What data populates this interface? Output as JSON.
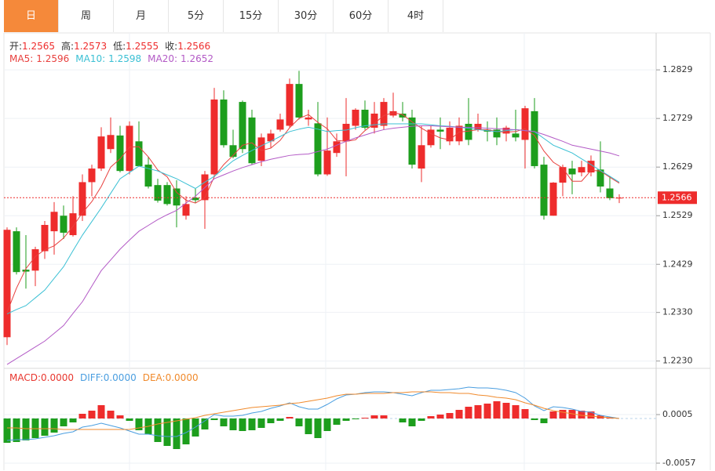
{
  "tabs": [
    {
      "label": "日",
      "active": true
    },
    {
      "label": "周",
      "active": false
    },
    {
      "label": "月",
      "active": false
    },
    {
      "label": "5分",
      "active": false
    },
    {
      "label": "15分",
      "active": false
    },
    {
      "label": "30分",
      "active": false
    },
    {
      "label": "60分",
      "active": false
    },
    {
      "label": "4时",
      "active": false
    }
  ],
  "chart_data": [
    {
      "type": "candlestick",
      "info": [
        {
          "label": "开:",
          "value": 1.2565
        },
        {
          "label": "高:",
          "value": 1.2573
        },
        {
          "label": "低:",
          "value": 1.2555
        },
        {
          "label": "收:",
          "value": 1.2566
        }
      ],
      "up_color": "#ee2c2c",
      "down_color": "#1d9e1d",
      "series": {
        "open": [
          1.2279,
          1.2497,
          1.2418,
          1.2416,
          1.2456,
          1.2497,
          1.2529,
          1.2489,
          1.2529,
          1.2598,
          1.2626,
          1.2666,
          1.2694,
          1.2621,
          1.2682,
          1.2634,
          1.2592,
          1.2592,
          1.2585,
          1.2529,
          1.2566,
          1.2561,
          1.2614,
          1.2768,
          1.2674,
          1.2763,
          1.2731,
          1.2642,
          1.2682,
          1.2706,
          1.2714,
          1.28,
          1.2727,
          1.2719,
          1.2614,
          1.2658,
          1.2682,
          1.2714,
          1.2747,
          1.271,
          1.2714,
          1.2735,
          1.2739,
          1.2731,
          1.2626,
          1.2674,
          1.2706,
          1.2682,
          1.2682,
          1.2718,
          1.2706,
          1.2706,
          1.2706,
          1.2698,
          1.2698,
          1.2685,
          1.2744,
          1.2634,
          1.2529,
          1.2597,
          1.2626,
          1.2618,
          1.2618,
          1.2624,
          1.2585,
          1.2565
        ],
        "high": [
          1.2505,
          1.2505,
          1.2489,
          1.2465,
          1.2518,
          1.2557,
          1.255,
          1.2569,
          1.2614,
          1.2634,
          1.2711,
          1.2731,
          1.2714,
          1.2723,
          1.2723,
          1.265,
          1.2605,
          1.2598,
          1.2602,
          1.2569,
          1.2585,
          1.2621,
          1.2792,
          1.2787,
          1.2706,
          1.2766,
          1.2747,
          1.2698,
          1.2706,
          1.2739,
          1.2811,
          1.2827,
          1.2747,
          1.2763,
          1.2731,
          1.2698,
          1.2771,
          1.275,
          1.2766,
          1.2763,
          1.2771,
          1.2782,
          1.2763,
          1.2747,
          1.2714,
          1.2714,
          1.2731,
          1.2723,
          1.2731,
          1.2771,
          1.2739,
          1.2723,
          1.2731,
          1.2714,
          1.2747,
          1.2755,
          1.2771,
          1.265,
          1.2598,
          1.2634,
          1.2642,
          1.2642,
          1.2653,
          1.2682,
          1.261,
          1.2573
        ],
        "low": [
          1.2263,
          1.2408,
          1.2379,
          1.2384,
          1.244,
          1.2449,
          1.2481,
          1.2486,
          1.2518,
          1.2569,
          1.2621,
          1.2658,
          1.2618,
          1.2614,
          1.2631,
          1.2585,
          1.2556,
          1.255,
          1.2505,
          1.2521,
          1.2556,
          1.2502,
          1.261,
          1.2669,
          1.2647,
          1.2658,
          1.2634,
          1.2631,
          1.2669,
          1.2702,
          1.2711,
          1.2727,
          1.2714,
          1.261,
          1.2611,
          1.265,
          1.261,
          1.2706,
          1.2706,
          1.2698,
          1.2706,
          1.2731,
          1.2723,
          1.2626,
          1.2598,
          1.2669,
          1.2666,
          1.2674,
          1.2674,
          1.2674,
          1.2702,
          1.2682,
          1.2674,
          1.2682,
          1.2682,
          1.2626,
          1.2626,
          1.2521,
          1.2529,
          1.2569,
          1.2573,
          1.261,
          1.261,
          1.2577,
          1.2561,
          1.2555
        ],
        "close": [
          1.25,
          1.2413,
          1.2414,
          1.246,
          1.251,
          1.2537,
          1.2494,
          1.2534,
          1.2598,
          1.2626,
          1.2692,
          1.2695,
          1.2621,
          1.2714,
          1.2631,
          1.2589,
          1.256,
          1.2553,
          1.255,
          1.2553,
          1.2561,
          1.2614,
          1.2768,
          1.2674,
          1.265,
          1.2666,
          1.2637,
          1.269,
          1.2698,
          1.2727,
          1.28,
          1.2731,
          1.2731,
          1.2614,
          1.2663,
          1.2682,
          1.2718,
          1.2747,
          1.271,
          1.2739,
          1.2763,
          1.2744,
          1.2731,
          1.2634,
          1.2674,
          1.2706,
          1.2702,
          1.271,
          1.2714,
          1.2685,
          1.2718,
          1.2702,
          1.269,
          1.271,
          1.269,
          1.275,
          1.2631,
          1.2529,
          1.2597,
          1.2629,
          1.2614,
          1.2629,
          1.2642,
          1.2589,
          1.2565,
          1.2566
        ]
      },
      "ma": [
        {
          "label": "MA5:",
          "last": 1.2596,
          "color": "#e8403e",
          "values": [
            1.233,
            1.238,
            1.242,
            1.2445,
            1.2459,
            1.2467,
            1.2483,
            1.2507,
            1.2535,
            1.2558,
            1.2589,
            1.2629,
            1.2646,
            1.267,
            1.2671,
            1.265,
            1.2623,
            1.2609,
            1.2577,
            1.2561,
            1.2555,
            1.2566,
            1.2609,
            1.2634,
            1.2653,
            1.2674,
            1.2679,
            1.2663,
            1.2668,
            1.2684,
            1.271,
            1.2729,
            1.2737,
            1.2721,
            1.2708,
            1.2684,
            1.2682,
            1.2685,
            1.2704,
            1.2719,
            1.2735,
            1.2741,
            1.2737,
            1.2722,
            1.2709,
            1.2698,
            1.2689,
            1.2685,
            1.2701,
            1.2703,
            1.2706,
            1.2706,
            1.2702,
            1.2701,
            1.2702,
            1.2708,
            1.2694,
            1.2662,
            1.2639,
            1.2627,
            1.26,
            1.26,
            1.2622,
            1.2621,
            1.2608,
            1.2596
          ]
        },
        {
          "label": "MA10:",
          "last": 1.2598,
          "color": "#3bc0d4",
          "values": [
            1.2327,
            1.2336,
            1.2344,
            1.236,
            1.2376,
            1.24,
            1.2424,
            1.2457,
            1.2489,
            1.2517,
            1.2545,
            1.2575,
            1.2605,
            1.2618,
            1.2631,
            1.2626,
            1.2621,
            1.2613,
            1.2605,
            1.2595,
            1.2585,
            1.2598,
            1.261,
            1.2626,
            1.2642,
            1.2653,
            1.2663,
            1.2673,
            1.2682,
            1.2692,
            1.2702,
            1.2707,
            1.2711,
            1.2707,
            1.2702,
            1.2704,
            1.2705,
            1.271,
            1.2714,
            1.2716,
            1.2718,
            1.2718,
            1.2718,
            1.2718,
            1.2718,
            1.2716,
            1.2714,
            1.2713,
            1.2711,
            1.2709,
            1.2706,
            1.2704,
            1.2702,
            1.2704,
            1.2706,
            1.2704,
            1.2702,
            1.2688,
            1.2674,
            1.2666,
            1.2658,
            1.2646,
            1.2634,
            1.2622,
            1.261,
            1.2598
          ]
        },
        {
          "label": "MA20:",
          "last": 1.2652,
          "color": "#b35ac6",
          "values": [
            1.2223,
            1.2235,
            1.2247,
            1.2259,
            1.2271,
            1.2287,
            1.2303,
            1.2328,
            1.2352,
            1.2384,
            1.2416,
            1.2438,
            1.246,
            1.2479,
            1.2497,
            1.2509,
            1.2521,
            1.2531,
            1.254,
            1.2555,
            1.2569,
            1.2587,
            1.2605,
            1.2613,
            1.2621,
            1.2628,
            1.2634,
            1.264,
            1.2645,
            1.2649,
            1.2653,
            1.2655,
            1.2656,
            1.2661,
            1.2666,
            1.2674,
            1.2682,
            1.2689,
            1.2695,
            1.2701,
            1.2706,
            1.2709,
            1.2711,
            1.2713,
            1.2714,
            1.2714,
            1.2713,
            1.2712,
            1.2711,
            1.2711,
            1.271,
            1.2709,
            1.2708,
            1.2707,
            1.2706,
            1.2704,
            1.2702,
            1.2696,
            1.2689,
            1.2682,
            1.2674,
            1.267,
            1.2666,
            1.2662,
            1.2658,
            1.2652
          ]
        }
      ],
      "last_price": 1.2566,
      "ylim": [
        1.2215,
        1.2905
      ],
      "yticks": [
        1.2829,
        1.2729,
        1.2629,
        1.2529,
        1.2429,
        {
          "value": 1.233,
          "label": "1.2330"
        },
        {
          "value": 1.223,
          "label": "1.2230"
        }
      ],
      "grid": true
    },
    {
      "type": "macd",
      "histogram": {
        "label": "MACD:",
        "last": 0,
        "last_label": "0.0000",
        "color": "#e8372f",
        "up_color": "#ee2c2c",
        "down_color": "#1d9e1d",
        "values": [
          -0.0031,
          -0.003,
          -0.0028,
          -0.0025,
          -0.0022,
          -0.0018,
          -0.001,
          -0.0005,
          0.0006,
          0.001,
          0.0017,
          0.001,
          0.0004,
          -0.0003,
          -0.0015,
          -0.002,
          -0.003,
          -0.0035,
          -0.0039,
          -0.0033,
          -0.0023,
          -0.0014,
          -0.0002,
          -0.001,
          -0.0015,
          -0.0016,
          -0.0015,
          -0.0012,
          -0.0006,
          -0.0003,
          0.0002,
          -0.001,
          -0.002,
          -0.0025,
          -0.0016,
          -0.0008,
          -0.0003,
          -0.0001,
          0.0001,
          0.0004,
          0.0004,
          0,
          -0.0005,
          -0.001,
          -0.0003,
          0.0003,
          0.0005,
          0.0007,
          0.0011,
          0.0015,
          0.0017,
          0.0019,
          0.0022,
          0.002,
          0.0017,
          0.0012,
          -0.0002,
          -0.0006,
          0.0009,
          0.0011,
          0.0011,
          0.001,
          0.0009,
          0.0004,
          0.0001,
          0
        ]
      },
      "series": [
        {
          "label": "DIFF:",
          "last": 0,
          "last_label": "0.0000",
          "color": "#4a9ee0",
          "values": [
            -0.0028,
            -0.0027,
            -0.0027,
            -0.0026,
            -0.0024,
            -0.0022,
            -0.0019,
            -0.0017,
            -0.0011,
            -0.0009,
            -0.0006,
            -0.0009,
            -0.0012,
            -0.0016,
            -0.002,
            -0.002,
            -0.0022,
            -0.0023,
            -0.0023,
            -0.0018,
            -0.0011,
            -0.0003,
            0.0005,
            0.0003,
            0.0003,
            0.0004,
            0.0007,
            0.0009,
            0.0013,
            0.0016,
            0.002,
            0.0015,
            0.0012,
            0.0012,
            0.0018,
            0.0025,
            0.003,
            0.0031,
            0.0033,
            0.0034,
            0.0034,
            0.0033,
            0.0031,
            0.0029,
            0.0033,
            0.0036,
            0.0036,
            0.0037,
            0.0038,
            0.004,
            0.0039,
            0.0039,
            0.0038,
            0.0036,
            0.0033,
            0.0026,
            0.0016,
            0.001,
            0.0015,
            0.0014,
            0.0012,
            0.0009,
            0.0008,
            0.0004,
            0.0002,
            0
          ]
        },
        {
          "label": "DEA:",
          "last": 0,
          "last_label": "0.0000",
          "color": "#f08a2c",
          "values": [
            -0.0012,
            -0.0012,
            -0.0013,
            -0.0013,
            -0.0013,
            -0.0013,
            -0.0014,
            -0.0014,
            -0.0014,
            -0.0014,
            -0.0014,
            -0.0014,
            -0.0014,
            -0.0014,
            -0.0012,
            -0.001,
            -0.0007,
            -0.0005,
            -0.0003,
            -0.0001,
            0.0001,
            0.0004,
            0.0006,
            0.0008,
            0.001,
            0.0012,
            0.0014,
            0.0015,
            0.0016,
            0.0017,
            0.0019,
            0.002,
            0.0022,
            0.0024,
            0.0026,
            0.0029,
            0.0031,
            0.0031,
            0.0032,
            0.0032,
            0.0032,
            0.0033,
            0.0033,
            0.0034,
            0.0034,
            0.0034,
            0.0033,
            0.0033,
            0.0032,
            0.0032,
            0.003,
            0.0029,
            0.0027,
            0.0026,
            0.0024,
            0.002,
            0.0017,
            0.0013,
            0.001,
            0.0008,
            0.0006,
            0.0004,
            0.0003,
            0.0002,
            0.0001,
            0
          ]
        }
      ],
      "ylim": [
        -0.0066,
        0.0062
      ],
      "yticks": [
        0.0005,
        -0.0057
      ],
      "grid": true
    }
  ]
}
